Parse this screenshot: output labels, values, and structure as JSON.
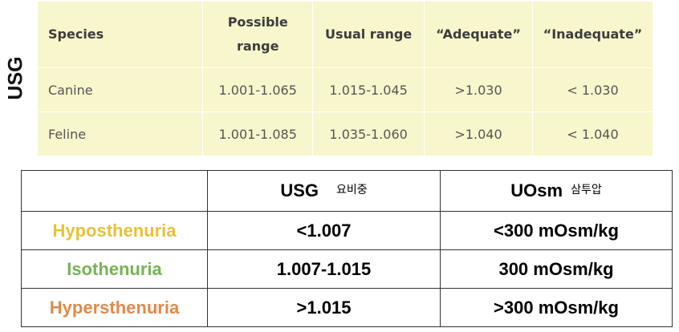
{
  "side_label": "USG",
  "species_table": {
    "headers": [
      "Species",
      "Possible\nrange",
      "Usual range",
      "“Adequate”",
      "“Inadequate”"
    ],
    "rows": [
      [
        "Canine",
        "1.001-1.065",
        "1.015-1.045",
        ">1.030",
        "< 1.030"
      ],
      [
        "Feline",
        "1.001-1.085",
        "1.035-1.060",
        ">1.040",
        "< 1.040"
      ]
    ]
  },
  "osm_table": {
    "col_usg": "USG",
    "col_usg_sub": "요비중",
    "col_uosm": "UOsm",
    "col_uosm_sub": "삼투압",
    "rows": [
      {
        "label": "Hyposthenuria",
        "usg": "<1.007",
        "uosm": "<300 mOsm/kg",
        "color": "#e8c237"
      },
      {
        "label": "Isothenuria",
        "usg": "1.007-1.015",
        "uosm": "300 mOsm/kg",
        "color": "#77b358"
      },
      {
        "label": "Hypersthenuria",
        "usg": ">1.015",
        "uosm": ">300 mOsm/kg",
        "color": "#e08a4a"
      }
    ]
  }
}
